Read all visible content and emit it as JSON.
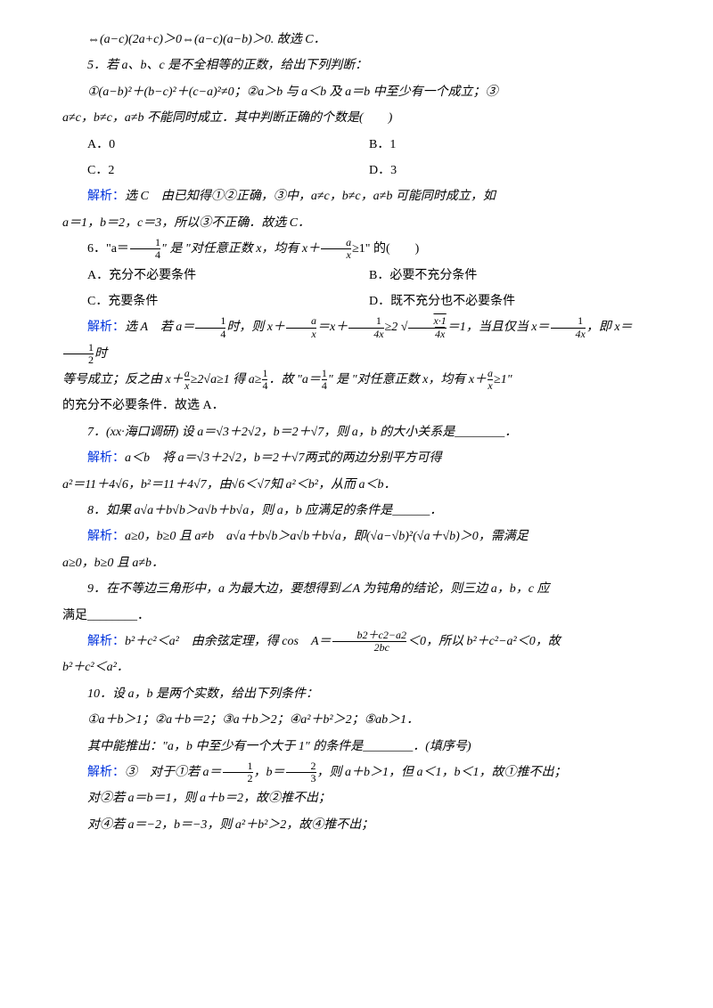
{
  "line1": "⇔(a−c)(2a+c)＞0⇔(a−c)(a−b)＞0. 故选 C．",
  "q5": {
    "stem": "5．若 a、b、c 是不全相等的正数，给出下列判断：",
    "stmt1": "①(a−b)²＋(b−c)²＋(c−a)²≠0；②a＞b 与 a＜b 及 a＝b 中至少有一个成立；③",
    "stmt2": "a≠c，b≠c，a≠b 不能同时成立．其中判断正确的个数是(　　)",
    "optA": "A．0",
    "optB": "B．1",
    "optC": "C．2",
    "optD": "D．3",
    "ans_label": "解析：",
    "ans": "选 C　由已知得①②正确，③中，a≠c，b≠c，a≠b 可能同时成立，如",
    "ans2": "a＝1，b＝2，c＝3，所以③不正确．故选 C．"
  },
  "q6": {
    "stem_a": "6．\"a＝",
    "stem_b": "\" 是 \"对任意正数 x，均有 x＋",
    "stem_c": "≥1\" 的(　　)",
    "optA": "A．充分不必要条件",
    "optB": "B．必要不充分条件",
    "optC": "C．充要条件",
    "optD": "D．既不充分也不必要条件",
    "ans_label": "解析：",
    "ans1a": "选 A　若 a＝",
    "ans1b": "时，则 x＋",
    "ans1c": "＝x＋",
    "ans1d": "≥2",
    "ans1e": "＝1，当且仅当 x＝",
    "ans1f": "，即 x＝",
    "ans1g": "时",
    "ans2a": "等号成立；反之由 x＋",
    "ans2b": "≥2√a≥1 得 a≥",
    "ans2c": "．故 \"a＝",
    "ans2d": "\" 是 \"对任意正数 x，均有 x＋",
    "ans2e": "≥1\"",
    "ans3": "的充分不必要条件．故选 A．"
  },
  "q7": {
    "stem": "7．(xx·海口调研) 设 a＝√3＋2√2，b＝2＋√7，则 a，b 的大小关系是________．",
    "ans_label": "解析：",
    "ans1": "a＜b　将 a＝√3＋2√2，b＝2＋√7两式的两边分别平方可得",
    "ans2": "a²＝11＋4√6，b²＝11＋4√7，由√6＜√7知 a²＜b²，从而 a＜b．"
  },
  "q8": {
    "stem": "8．如果 a√a＋b√b＞a√b＋b√a，则 a，b 应满足的条件是______．",
    "ans_label": "解析：",
    "ans1": "a≥0，b≥0 且 a≠b　a√a＋b√b＞a√b＋b√a，即(√a−√b)²(√a＋√b)＞0，需满足",
    "ans2": "a≥0，b≥0 且 a≠b．"
  },
  "q9": {
    "stem1": "9．在不等边三角形中，a 为最大边，要想得到∠A 为钝角的结论，则三边 a，b，c 应",
    "stem2": "满足________．",
    "ans_label": "解析：",
    "ans1a": "b²＋c²＜a²　由余弦定理，得 cos　A＝",
    "frac_num": "b2＋c2−a2",
    "frac_den": "2bc",
    "ans1b": "＜0，所以 b²＋c²−a²＜0，故",
    "ans2": "b²＋c²＜a²．"
  },
  "q10": {
    "stem": "10．设 a，b 是两个实数，给出下列条件：",
    "conds": "①a＋b＞1；②a＋b＝2；③a＋b＞2；④a²＋b²＞2；⑤ab＞1．",
    "ask": "其中能推出：\"a，b 中至少有一个大于 1\" 的条件是________．(填序号)",
    "ans_label": "解析：",
    "ans1a": "③　对于①若 a＝",
    "ans1b": "，b＝",
    "ans1c": "，则 a＋b＞1，但 a＜1，b＜1，故①推不出；",
    "ans2": "对②若 a＝b＝1，则 a＋b＝2，故②推不出；",
    "ans3": "对④若 a＝−2，b＝−3，则 a²＋b²＞2，故④推不出；"
  },
  "fracs": {
    "one_four": {
      "n": "1",
      "d": "4"
    },
    "a_x": {
      "n": "a",
      "d": "x"
    },
    "one_fourx": {
      "n": "1",
      "d": "4x"
    },
    "x_onefourx": {
      "n": "x·1",
      "d": "4x"
    },
    "one_two": {
      "n": "1",
      "d": "2"
    },
    "two_three": {
      "n": "2",
      "d": "3"
    }
  }
}
